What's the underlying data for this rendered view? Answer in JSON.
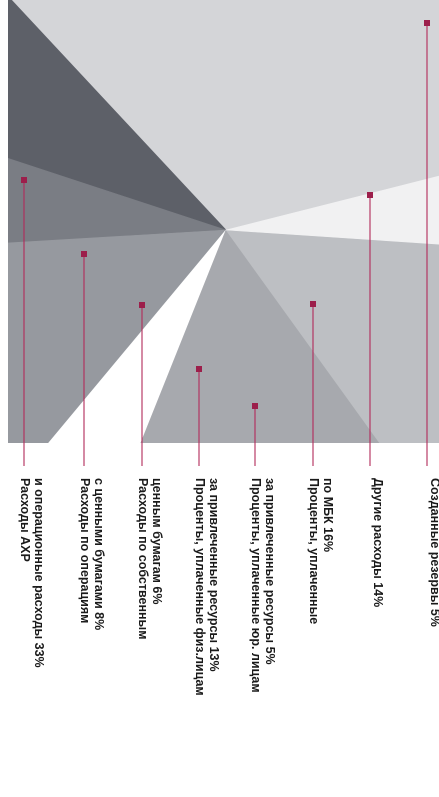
{
  "chart_data": {
    "type": "pie",
    "title": "",
    "orientation": "rotated-90-cw",
    "slices": [
      {
        "name": "Расходы АХР и операционные расходы",
        "value": 33,
        "unit": "%",
        "label_lines": [
          "Расходы АХР",
          "и операционные расходы 33%"
        ],
        "color": "#d4d5d8"
      },
      {
        "name": "Расходы по операциям с ценными бумагами",
        "value": 8,
        "unit": "%",
        "label_lines": [
          "Расходы по операциям",
          "с ценными бумагами 8%"
        ],
        "color": "#5d6068"
      },
      {
        "name": "Расходы по собственным ценным бумагам",
        "value": 6,
        "unit": "%",
        "label_lines": [
          "Расходы по собственным",
          "ценным бумагам 6%"
        ],
        "color": "#7a7d84"
      },
      {
        "name": "Проценты, уплаченные физ.лицам за привлеченные ресурсы",
        "value": 13,
        "unit": "%",
        "label_lines": [
          "Проценты, уплаченные физ.лицам",
          "за привлеченные ресурсы 13%"
        ],
        "color": "#96999f"
      },
      {
        "name": "Проценты, уплаченные юр. лицам за привлеченные ресурсы",
        "value": 5,
        "unit": "%",
        "label_lines": [
          "Проценты, уплаченные юр. лицам",
          "за привлеченные ресурсы 5%"
        ],
        "color": "#ffffff"
      },
      {
        "name": "Проценты, уплаченные по МБК",
        "value": 16,
        "unit": "%",
        "label_lines": [
          "Проценты, уплаченные",
          "по МБК 16%"
        ],
        "color": "#a7a9ae"
      },
      {
        "name": "Другие расходы",
        "value": 14,
        "unit": "%",
        "label_lines": [
          "Другие расходы 14%"
        ],
        "color": "#bdbfc3"
      },
      {
        "name": "Созданные резервы",
        "value": 5,
        "unit": "%",
        "label_lines": [
          "Созданные резервы 5%"
        ],
        "color": "#f1f1f2"
      }
    ],
    "marker_color": "#9c1f4b",
    "leader_color": "#b22a5a",
    "legend": "none"
  }
}
